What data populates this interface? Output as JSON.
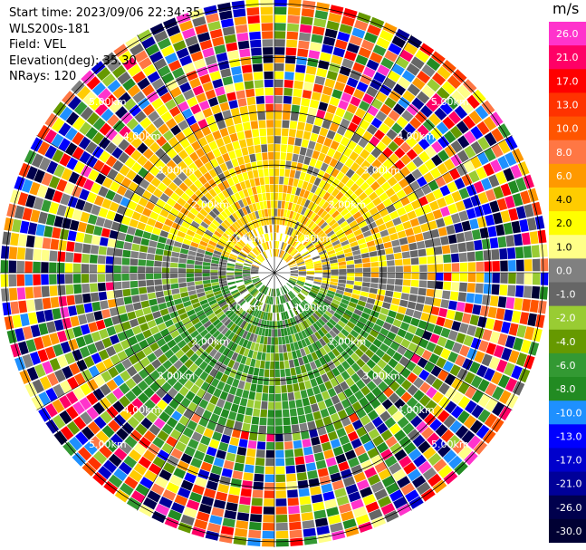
{
  "info": {
    "start_time": "Start time: 2023/09/06 22:34:35",
    "site": "WLS200s-181",
    "field": "Field: VEL",
    "elevation": "Elevation(deg): 35.30",
    "nrays": "NRays: 120"
  },
  "colorbar": {
    "unit": "m/s",
    "ticks": [
      "26.0",
      "21.0",
      "17.0",
      "13.0",
      "10.0",
      "8.0",
      "6.0",
      "4.0",
      "2.0",
      "1.0",
      "0.0",
      "-1.0",
      "-2.0",
      "-4.0",
      "-6.0",
      "-8.0",
      "-10.0",
      "-13.0",
      "-17.0",
      "-21.0",
      "-26.0",
      "-30.0"
    ],
    "colors": [
      "#ff33cc",
      "#ff0066",
      "#ff0000",
      "#ff3300",
      "#ff5500",
      "#ff7744",
      "#ff9900",
      "#ffcc00",
      "#ffff00",
      "#ffff88",
      "#808080",
      "#666666",
      "#99cc33",
      "#669900",
      "#339933",
      "#228b22",
      "#1e90ff",
      "#0000ff",
      "#0000cc",
      "#000099",
      "#00004d",
      "#000033"
    ]
  },
  "rings": {
    "labels": [
      "1.00km",
      "2.00km",
      "3.00km",
      "4.00km",
      "5.00km"
    ]
  }
}
